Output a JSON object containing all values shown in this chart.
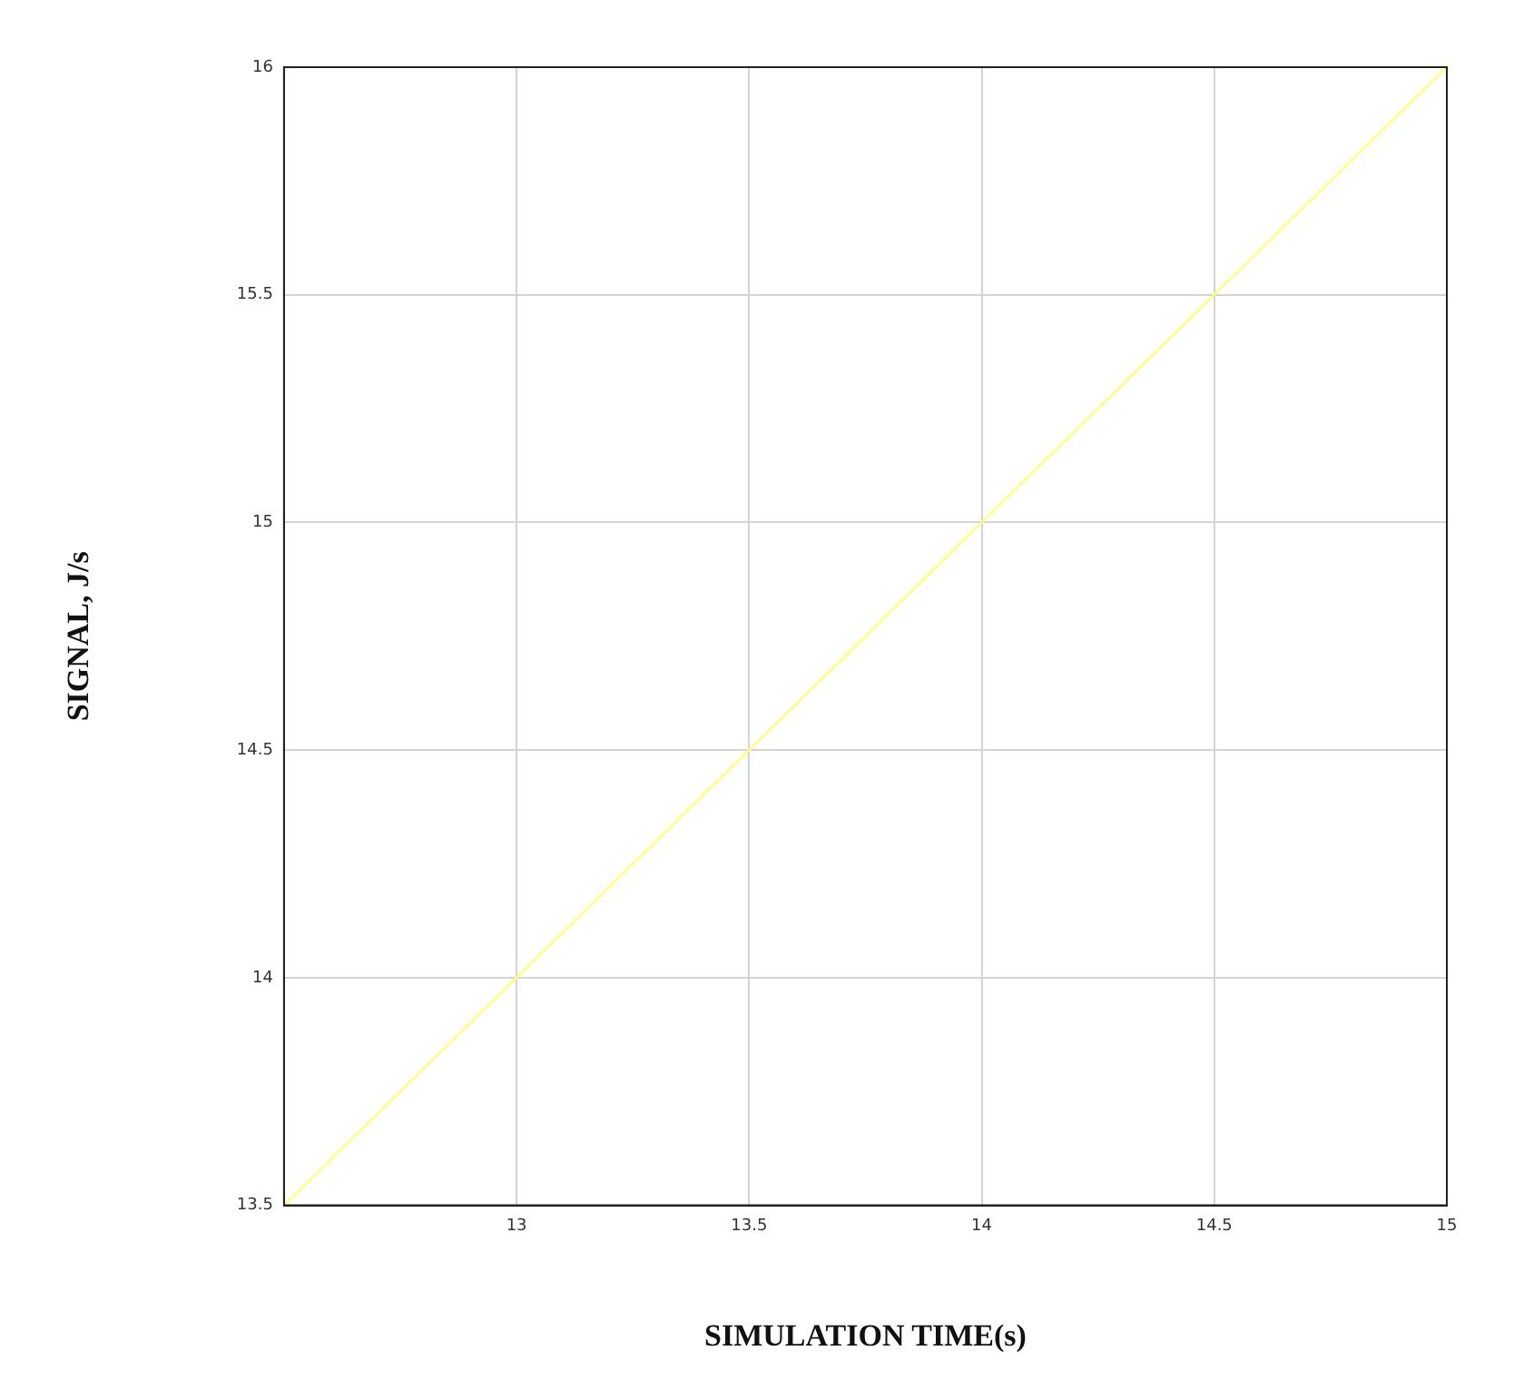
{
  "chart_data": {
    "type": "line",
    "xlabel": "SIMULATION TIME(s)",
    "ylabel": "SIGNAL, J/s",
    "x": [
      12.5,
      15
    ],
    "series": [
      {
        "color": "#ffff80",
        "values": [
          13.5,
          16
        ]
      }
    ],
    "xlim": [
      12.5,
      15
    ],
    "xticks": [
      13,
      13.5,
      14,
      14.5,
      15
    ],
    "ylim": [
      13.5,
      16
    ],
    "yticks": [
      13.5,
      14,
      14.5,
      15,
      15.5,
      16
    ],
    "grid": true,
    "legend": false,
    "marker": "none",
    "line_style": "solid"
  }
}
